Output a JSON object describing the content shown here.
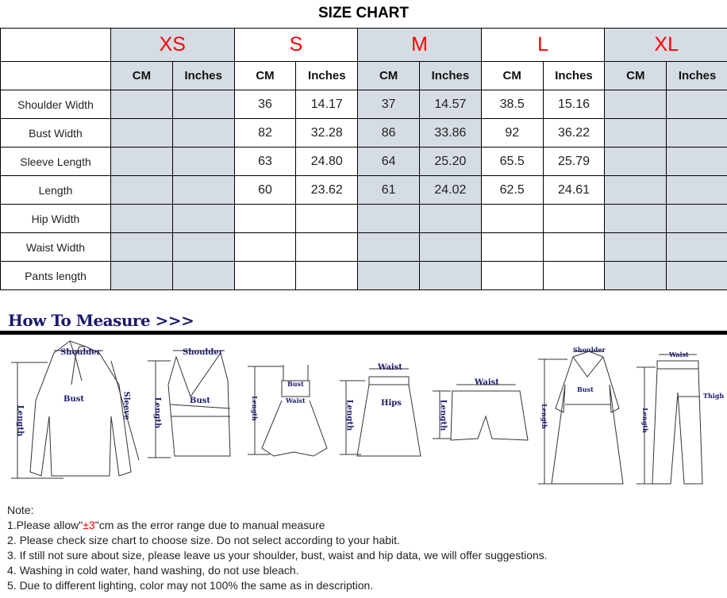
{
  "title": "SIZE CHART",
  "table": {
    "sizes": [
      "XS",
      "S",
      "M",
      "L",
      "XL"
    ],
    "units": [
      "CM",
      "Inches"
    ],
    "shaded_color": "#d6dce4",
    "size_color": "#ff0000",
    "rows": [
      {
        "label": "Shoulder Width",
        "values": [
          "",
          "",
          "36",
          "14.17",
          "37",
          "14.57",
          "38.5",
          "15.16",
          "",
          ""
        ]
      },
      {
        "label": "Bust Width",
        "values": [
          "",
          "",
          "82",
          "32.28",
          "86",
          "33.86",
          "92",
          "36.22",
          "",
          ""
        ]
      },
      {
        "label": "Sleeve Length",
        "values": [
          "",
          "",
          "63",
          "24.80",
          "64",
          "25.20",
          "65.5",
          "25.79",
          "",
          ""
        ]
      },
      {
        "label": "Length",
        "values": [
          "",
          "",
          "60",
          "23.62",
          "61",
          "24.02",
          "62.5",
          "24.61",
          "",
          ""
        ]
      },
      {
        "label": "Hip Width",
        "values": [
          "",
          "",
          "",
          "",
          "",
          "",
          "",
          "",
          "",
          ""
        ]
      },
      {
        "label": "Waist Width",
        "values": [
          "",
          "",
          "",
          "",
          "",
          "",
          "",
          "",
          "",
          ""
        ]
      },
      {
        "label": "Pants length",
        "values": [
          "",
          "",
          "",
          "",
          "",
          "",
          "",
          "",
          "",
          ""
        ]
      }
    ]
  },
  "how_to_measure": {
    "heading": "How To Measure >>>",
    "labels": {
      "shoulder": "Shoulder",
      "bust": "Bust",
      "sleeve": "Sleeve",
      "length": "Length",
      "waist": "Waist",
      "hips": "Hips",
      "thigh": "Thigh"
    }
  },
  "notes": {
    "heading": "Note:",
    "n1_pre": "1.Please allow\"",
    "n1_red": "±3",
    "n1_post": "\"cm as the error range due to manual measure",
    "n2": "2. Please check size chart to choose size. Do not select according to your habit.",
    "n3": "3. If still not sure about size, please leave us your shoulder, bust, waist and hip data, we will offer suggestions.",
    "n4": "4. Washing in cold water, hand washing, do not use bleach.",
    "n5": "5. Due to different lighting, color may not 100% the same as in description."
  }
}
